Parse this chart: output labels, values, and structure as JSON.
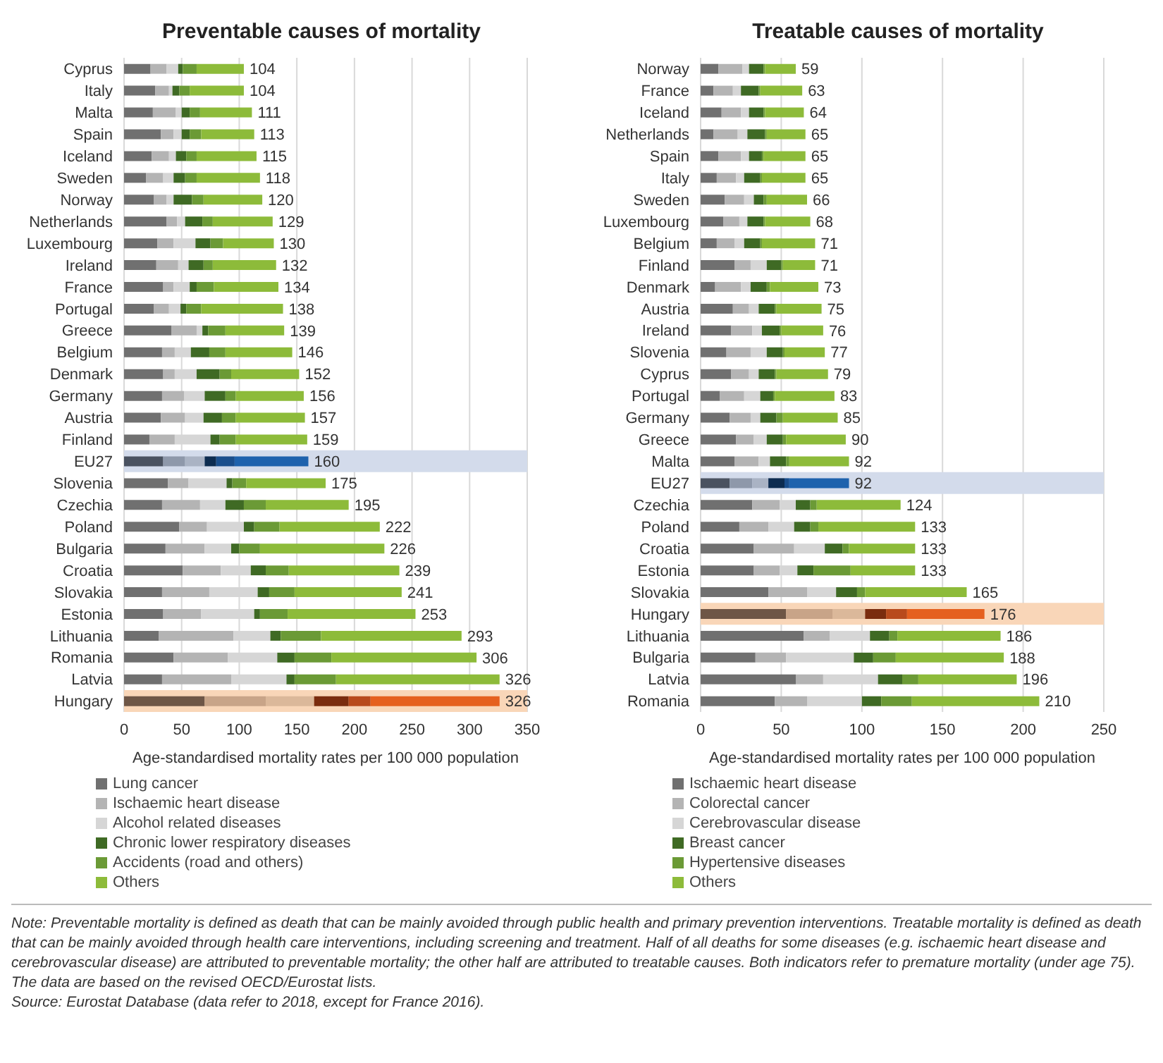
{
  "chart_data": [
    {
      "type": "bar",
      "orientation": "horizontal",
      "stacked": true,
      "title": "Preventable causes of mortality",
      "xlabel": "Age-standardised mortality rates per 100 000 population",
      "categories": [
        "Cyprus",
        "Italy",
        "Malta",
        "Spain",
        "Iceland",
        "Sweden",
        "Norway",
        "Netherlands",
        "Luxembourg",
        "Ireland",
        "France",
        "Portugal",
        "Greece",
        "Belgium",
        "Denmark",
        "Germany",
        "Austria",
        "Finland",
        "EU27",
        "Slovenia",
        "Czechia",
        "Poland",
        "Bulgaria",
        "Croatia",
        "Slovakia",
        "Estonia",
        "Lithuania",
        "Romania",
        "Latvia",
        "Hungary"
      ],
      "series": [
        {
          "name": "Lung cancer",
          "color": "#707070",
          "values": [
            23,
            27,
            25,
            32,
            24,
            19,
            26,
            37,
            29,
            28,
            34,
            26,
            41,
            33,
            34,
            33,
            32,
            22,
            34,
            38,
            33,
            48,
            36,
            51,
            33,
            34,
            30,
            43,
            33,
            70
          ],
          "colors": [
            "#707070",
            "#707070",
            "#707070",
            "#707070",
            "#707070",
            "#707070",
            "#707070",
            "#707070",
            "#707070",
            "#707070",
            "#707070",
            "#707070",
            "#707070",
            "#707070",
            "#707070",
            "#707070",
            "#707070",
            "#707070",
            "#4a5260",
            "#707070",
            "#707070",
            "#707070",
            "#707070",
            "#707070",
            "#707070",
            "#707070",
            "#707070",
            "#707070",
            "#707070",
            "#6e5646"
          ]
        },
        {
          "name": "Ischaemic heart disease",
          "color": "#b4b4b4",
          "values": [
            14,
            12,
            20,
            11,
            15,
            15,
            11,
            9,
            14,
            19,
            9,
            13,
            22,
            11,
            10,
            19,
            21,
            22,
            19,
            18,
            33,
            24,
            34,
            33,
            41,
            33,
            65,
            47,
            60,
            53
          ],
          "colors": [
            "#b4b4b4",
            "#b4b4b4",
            "#b4b4b4",
            "#b4b4b4",
            "#b4b4b4",
            "#b4b4b4",
            "#b4b4b4",
            "#b4b4b4",
            "#b4b4b4",
            "#b4b4b4",
            "#b4b4b4",
            "#b4b4b4",
            "#b4b4b4",
            "#b4b4b4",
            "#b4b4b4",
            "#b4b4b4",
            "#b4b4b4",
            "#b4b4b4",
            "#8e98aa",
            "#b4b4b4",
            "#b4b4b4",
            "#b4b4b4",
            "#b4b4b4",
            "#b4b4b4",
            "#b4b4b4",
            "#b4b4b4",
            "#b4b4b4",
            "#b4b4b4",
            "#b4b4b4",
            "#c8a488"
          ]
        },
        {
          "name": "Alcohol related diseases",
          "color": "#d6d6d6",
          "values": [
            10,
            3,
            5,
            7,
            6,
            9,
            6,
            7,
            19,
            9,
            14,
            10,
            5,
            14,
            19,
            18,
            16,
            31,
            17,
            33,
            22,
            32,
            23,
            26,
            42,
            46,
            32,
            43,
            48,
            42
          ],
          "colors": [
            "#d6d6d6",
            "#d6d6d6",
            "#d6d6d6",
            "#d6d6d6",
            "#d6d6d6",
            "#d6d6d6",
            "#d6d6d6",
            "#d6d6d6",
            "#d6d6d6",
            "#d6d6d6",
            "#d6d6d6",
            "#d6d6d6",
            "#d6d6d6",
            "#d6d6d6",
            "#d6d6d6",
            "#d6d6d6",
            "#d6d6d6",
            "#d6d6d6",
            "#aab3c4",
            "#d6d6d6",
            "#d6d6d6",
            "#d6d6d6",
            "#d6d6d6",
            "#d6d6d6",
            "#d6d6d6",
            "#d6d6d6",
            "#d6d6d6",
            "#d6d6d6",
            "#d6d6d6",
            "#dbb89a"
          ]
        },
        {
          "name": "Chronic lower respiratory diseases",
          "color": "#3f6a24",
          "values": [
            4,
            6,
            7,
            7,
            9,
            10,
            16,
            15,
            13,
            13,
            6,
            5,
            5,
            16,
            20,
            18,
            16,
            8,
            10,
            5,
            16,
            9,
            7,
            13,
            10,
            5,
            9,
            15,
            7,
            30
          ],
          "colors": [
            "#3f6a24",
            "#3f6a24",
            "#3f6a24",
            "#3f6a24",
            "#3f6a24",
            "#3f6a24",
            "#3f6a24",
            "#3f6a24",
            "#3f6a24",
            "#3f6a24",
            "#3f6a24",
            "#3f6a24",
            "#3f6a24",
            "#3f6a24",
            "#3f6a24",
            "#3f6a24",
            "#3f6a24",
            "#3f6a24",
            "#0d2c50",
            "#3f6a24",
            "#3f6a24",
            "#3f6a24",
            "#3f6a24",
            "#3f6a24",
            "#3f6a24",
            "#3f6a24",
            "#3f6a24",
            "#3f6a24",
            "#3f6a24",
            "#7a2c0e"
          ]
        },
        {
          "name": "Accidents (road and others)",
          "color": "#6b9a36",
          "values": [
            12,
            9,
            9,
            10,
            9,
            10,
            10,
            9,
            11,
            8,
            15,
            13,
            15,
            14,
            10,
            9,
            12,
            14,
            16,
            12,
            19,
            22,
            18,
            20,
            22,
            24,
            35,
            32,
            36,
            19
          ],
          "colors": [
            "#6b9a36",
            "#6b9a36",
            "#6b9a36",
            "#6b9a36",
            "#6b9a36",
            "#6b9a36",
            "#6b9a36",
            "#6b9a36",
            "#6b9a36",
            "#6b9a36",
            "#6b9a36",
            "#6b9a36",
            "#6b9a36",
            "#6b9a36",
            "#6b9a36",
            "#6b9a36",
            "#6b9a36",
            "#6b9a36",
            "#1a4e8c",
            "#6b9a36",
            "#6b9a36",
            "#6b9a36",
            "#6b9a36",
            "#6b9a36",
            "#6b9a36",
            "#6b9a36",
            "#6b9a36",
            "#6b9a36",
            "#6b9a36",
            "#b84a1c"
          ]
        },
        {
          "name": "Others",
          "color": "#8dbb3a",
          "values": [
            41,
            47,
            45,
            46,
            52,
            55,
            51,
            52,
            44,
            55,
            56,
            71,
            51,
            58,
            59,
            59,
            60,
            62,
            64,
            69,
            72,
            87,
            108,
            96,
            93,
            111,
            122,
            126,
            142,
            112
          ],
          "colors": [
            "#8dbb3a",
            "#8dbb3a",
            "#8dbb3a",
            "#8dbb3a",
            "#8dbb3a",
            "#8dbb3a",
            "#8dbb3a",
            "#8dbb3a",
            "#8dbb3a",
            "#8dbb3a",
            "#8dbb3a",
            "#8dbb3a",
            "#8dbb3a",
            "#8dbb3a",
            "#8dbb3a",
            "#8dbb3a",
            "#8dbb3a",
            "#8dbb3a",
            "#1e62ad",
            "#8dbb3a",
            "#8dbb3a",
            "#8dbb3a",
            "#8dbb3a",
            "#8dbb3a",
            "#8dbb3a",
            "#8dbb3a",
            "#8dbb3a",
            "#8dbb3a",
            "#8dbb3a",
            "#e5601f"
          ]
        }
      ],
      "totals": [
        "104",
        "104",
        "111",
        "113",
        "115",
        "118",
        "120",
        "129",
        "130",
        "132",
        "134",
        "138",
        "139",
        "146",
        "152",
        "156",
        "157",
        "159",
        "160",
        "175",
        "195",
        "222",
        "226",
        "239",
        "241",
        "253",
        "293",
        "306",
        "326",
        "326"
      ],
      "xlim": [
        0,
        350
      ],
      "xticks": [
        0,
        50,
        100,
        150,
        200,
        250,
        300,
        350
      ],
      "grid": "x",
      "legend": "bottom",
      "bands": [
        {
          "axis": "y",
          "from": "EU27",
          "to": "EU27",
          "color": "#d3dbeb"
        },
        {
          "axis": "y",
          "from": "Hungary",
          "to": "Hungary",
          "color": "#f9d6b8"
        }
      ],
      "annotations": [
        "Note: Preventable mortality is defined as death that can be mainly avoided through public health and primary prevention interventions. Treatable mortality is defined as death that can be mainly avoided through health care interventions, including screening and treatment. Half of all deaths for some diseases (e.g. ischaemic heart disease and cerebrovascular disease) are attributed to preventable mortality; the other half are attributed to treatable causes. Both indicators refer to premature mortality (under age 75). The data are based on the revised OECD/Eurostat lists.",
        "Source: Eurostat Database (data refer to 2018, except for France 2016)."
      ]
    },
    {
      "type": "bar",
      "orientation": "horizontal",
      "stacked": true,
      "title": "Treatable causes of mortality",
      "xlabel": "Age-standardised mortality rates per 100 000 population",
      "categories": [
        "Norway",
        "France",
        "Iceland",
        "Netherlands",
        "Spain",
        "Italy",
        "Sweden",
        "Luxembourg",
        "Belgium",
        "Finland",
        "Denmark",
        "Austria",
        "Ireland",
        "Slovenia",
        "Cyprus",
        "Portugal",
        "Germany",
        "Greece",
        "Malta",
        "EU27",
        "Czechia",
        "Poland",
        "Croatia",
        "Estonia",
        "Slovakia",
        "Hungary",
        "Lithuania",
        "Bulgaria",
        "Latvia",
        "Romania"
      ],
      "series": [
        {
          "name": "Ischaemic heart disease",
          "color": "#707070",
          "values": [
            11,
            8,
            13,
            8,
            11,
            10,
            15,
            14,
            10,
            21,
            9,
            20,
            19,
            16,
            19,
            12,
            18,
            22,
            21,
            18,
            32,
            24,
            33,
            33,
            42,
            53,
            64,
            34,
            59,
            46
          ],
          "colors": [
            "#707070",
            "#707070",
            "#707070",
            "#707070",
            "#707070",
            "#707070",
            "#707070",
            "#707070",
            "#707070",
            "#707070",
            "#707070",
            "#707070",
            "#707070",
            "#707070",
            "#707070",
            "#707070",
            "#707070",
            "#707070",
            "#707070",
            "#4a5260",
            "#707070",
            "#707070",
            "#707070",
            "#707070",
            "#707070",
            "#6e5646",
            "#707070",
            "#707070",
            "#707070",
            "#707070"
          ]
        },
        {
          "name": "Colorectal cancer",
          "color": "#b4b4b4",
          "values": [
            15,
            12,
            12,
            15,
            14,
            12,
            12,
            10,
            11,
            10,
            16,
            10,
            13,
            15,
            11,
            15,
            13,
            11,
            15,
            14,
            17,
            18,
            25,
            16,
            24,
            29,
            16,
            19,
            17,
            20
          ],
          "colors": [
            "#b4b4b4",
            "#b4b4b4",
            "#b4b4b4",
            "#b4b4b4",
            "#b4b4b4",
            "#b4b4b4",
            "#b4b4b4",
            "#b4b4b4",
            "#b4b4b4",
            "#b4b4b4",
            "#b4b4b4",
            "#b4b4b4",
            "#b4b4b4",
            "#b4b4b4",
            "#b4b4b4",
            "#b4b4b4",
            "#b4b4b4",
            "#b4b4b4",
            "#b4b4b4",
            "#8e98aa",
            "#b4b4b4",
            "#b4b4b4",
            "#b4b4b4",
            "#b4b4b4",
            "#b4b4b4",
            "#c8a488",
            "#b4b4b4",
            "#b4b4b4",
            "#b4b4b4",
            "#b4b4b4"
          ]
        },
        {
          "name": "Cerebrovascular disease",
          "color": "#d6d6d6",
          "values": [
            4,
            5,
            5,
            6,
            5,
            5,
            6,
            5,
            6,
            10,
            6,
            6,
            6,
            10,
            6,
            10,
            6,
            8,
            7,
            10,
            10,
            16,
            19,
            11,
            18,
            20,
            25,
            42,
            34,
            34
          ],
          "colors": [
            "#d6d6d6",
            "#d6d6d6",
            "#d6d6d6",
            "#d6d6d6",
            "#d6d6d6",
            "#d6d6d6",
            "#d6d6d6",
            "#d6d6d6",
            "#d6d6d6",
            "#d6d6d6",
            "#d6d6d6",
            "#d6d6d6",
            "#d6d6d6",
            "#d6d6d6",
            "#d6d6d6",
            "#d6d6d6",
            "#d6d6d6",
            "#d6d6d6",
            "#d6d6d6",
            "#aab3c4",
            "#d6d6d6",
            "#d6d6d6",
            "#d6d6d6",
            "#d6d6d6",
            "#d6d6d6",
            "#dbb89a",
            "#d6d6d6",
            "#d6d6d6",
            "#d6d6d6",
            "#d6d6d6"
          ]
        },
        {
          "name": "Breast cancer",
          "color": "#3f6a24",
          "values": [
            9,
            11,
            9,
            11,
            8,
            10,
            6,
            10,
            10,
            9,
            10,
            10,
            11,
            10,
            10,
            8,
            10,
            10,
            10,
            10,
            9,
            10,
            11,
            10,
            13,
            13,
            12,
            12,
            15,
            12
          ],
          "colors": [
            "#3f6a24",
            "#3f6a24",
            "#3f6a24",
            "#3f6a24",
            "#3f6a24",
            "#3f6a24",
            "#3f6a24",
            "#3f6a24",
            "#3f6a24",
            "#3f6a24",
            "#3f6a24",
            "#3f6a24",
            "#3f6a24",
            "#3f6a24",
            "#3f6a24",
            "#3f6a24",
            "#3f6a24",
            "#3f6a24",
            "#3f6a24",
            "#0d2c50",
            "#3f6a24",
            "#3f6a24",
            "#3f6a24",
            "#3f6a24",
            "#3f6a24",
            "#7a2c0e",
            "#3f6a24",
            "#3f6a24",
            "#3f6a24",
            "#3f6a24"
          ]
        },
        {
          "name": "Hypertensive diseases",
          "color": "#6b9a36",
          "values": [
            1,
            1,
            1,
            1,
            1,
            1,
            2,
            1,
            1,
            1,
            2,
            1,
            1,
            1,
            1,
            1,
            4,
            2,
            2,
            3,
            4,
            5,
            4,
            23,
            5,
            13,
            5,
            14,
            10,
            19
          ],
          "colors": [
            "#6b9a36",
            "#6b9a36",
            "#6b9a36",
            "#6b9a36",
            "#6b9a36",
            "#6b9a36",
            "#6b9a36",
            "#6b9a36",
            "#6b9a36",
            "#6b9a36",
            "#6b9a36",
            "#6b9a36",
            "#6b9a36",
            "#6b9a36",
            "#6b9a36",
            "#6b9a36",
            "#6b9a36",
            "#6b9a36",
            "#6b9a36",
            "#1a4e8c",
            "#6b9a36",
            "#6b9a36",
            "#6b9a36",
            "#6b9a36",
            "#6b9a36",
            "#b84a1c",
            "#6b9a36",
            "#6b9a36",
            "#6b9a36",
            "#6b9a36"
          ]
        },
        {
          "name": "Others",
          "color": "#8dbb3a",
          "values": [
            19,
            26,
            24,
            24,
            26,
            27,
            25,
            28,
            33,
            20,
            30,
            28,
            26,
            25,
            32,
            37,
            34,
            37,
            37,
            37,
            52,
            60,
            41,
            40,
            63,
            48,
            64,
            67,
            61,
            79
          ],
          "colors": [
            "#8dbb3a",
            "#8dbb3a",
            "#8dbb3a",
            "#8dbb3a",
            "#8dbb3a",
            "#8dbb3a",
            "#8dbb3a",
            "#8dbb3a",
            "#8dbb3a",
            "#8dbb3a",
            "#8dbb3a",
            "#8dbb3a",
            "#8dbb3a",
            "#8dbb3a",
            "#8dbb3a",
            "#8dbb3a",
            "#8dbb3a",
            "#8dbb3a",
            "#8dbb3a",
            "#1e62ad",
            "#8dbb3a",
            "#8dbb3a",
            "#8dbb3a",
            "#8dbb3a",
            "#8dbb3a",
            "#e5601f",
            "#8dbb3a",
            "#8dbb3a",
            "#8dbb3a",
            "#8dbb3a"
          ]
        }
      ],
      "totals": [
        "59",
        "63",
        "64",
        "65",
        "65",
        "65",
        "66",
        "68",
        "71",
        "71",
        "73",
        "75",
        "76",
        "77",
        "79",
        "83",
        "85",
        "90",
        "92",
        "92",
        "124",
        "133",
        "133",
        "133",
        "165",
        "176",
        "186",
        "188",
        "196",
        "210"
      ],
      "xlim": [
        0,
        250
      ],
      "xticks": [
        0,
        50,
        100,
        150,
        200,
        250
      ],
      "grid": "x",
      "legend": "bottom",
      "bands": [
        {
          "axis": "y",
          "from": "EU27",
          "to": "EU27",
          "color": "#d3dbeb"
        },
        {
          "axis": "y",
          "from": "Hungary",
          "to": "Hungary",
          "color": "#f9d6b8"
        }
      ]
    }
  ]
}
